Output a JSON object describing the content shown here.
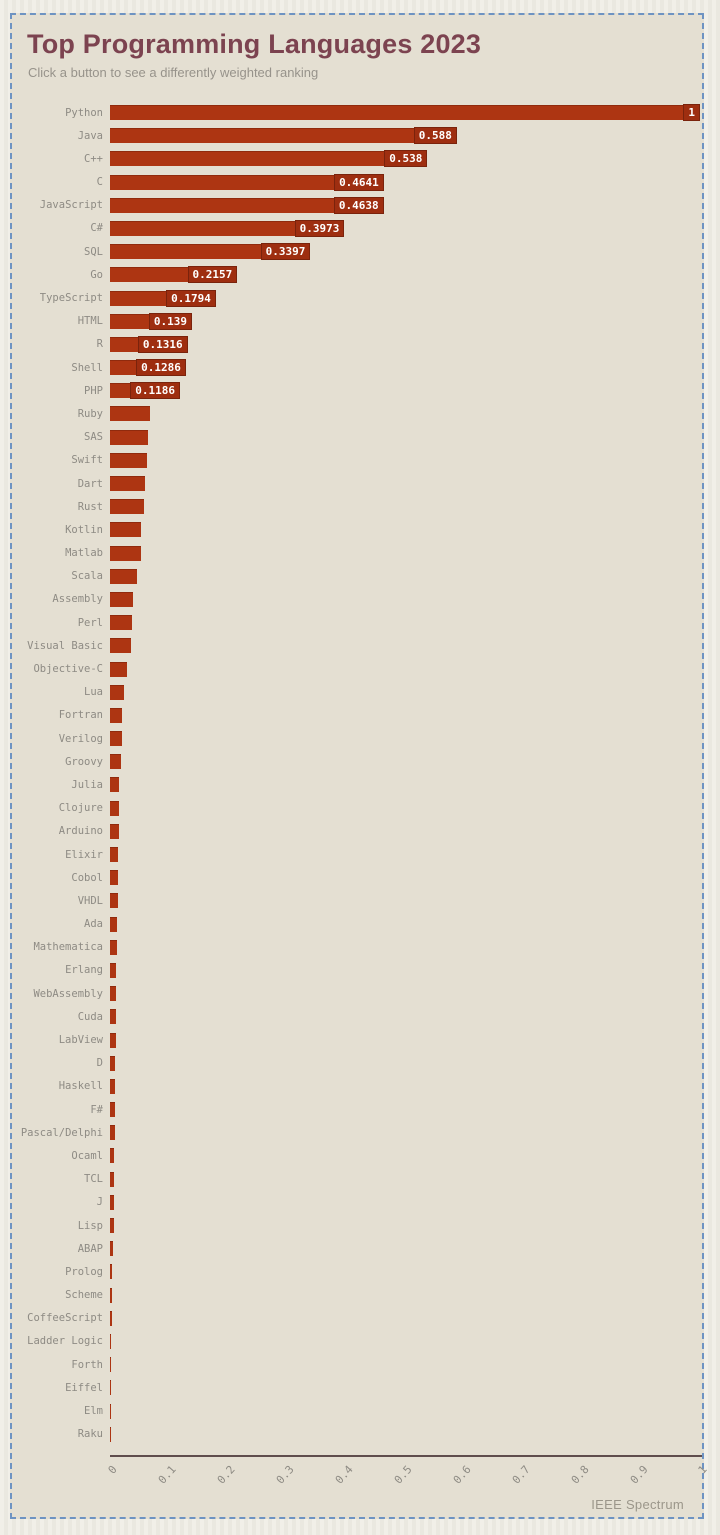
{
  "header": {
    "title": "Top Programming Languages 2023",
    "subtitle": "Click a button to see a differently weighted ranking"
  },
  "branding": {
    "source": "IEEE Spectrum"
  },
  "colors": {
    "bar": "#ad3512",
    "chip_bg": "#9e2e10",
    "chip_border": "#7a230c",
    "panel_bg": "#e4dfd2",
    "panel_border": "#6e93c2",
    "title": "#7c4350",
    "subtitle": "#97938b",
    "row_label": "#8e8b84",
    "axis": "#5f4d4d"
  },
  "chart_data": {
    "type": "bar",
    "orientation": "horizontal",
    "title": "Top Programming Languages 2023",
    "xlabel": "",
    "ylabel": "",
    "xlim": [
      0,
      1
    ],
    "grid": false,
    "legend": false,
    "x_ticks": [
      "0",
      "0.1",
      "0.2",
      "0.3",
      "0.4",
      "0.5",
      "0.6",
      "0.7",
      "0.8",
      "0.9",
      "1"
    ],
    "categories": [
      "Python",
      "Java",
      "C++",
      "C",
      "JavaScript",
      "C#",
      "SQL",
      "Go",
      "TypeScript",
      "HTML",
      "R",
      "Shell",
      "PHP",
      "Ruby",
      "SAS",
      "Swift",
      "Dart",
      "Rust",
      "Kotlin",
      "Matlab",
      "Scala",
      "Assembly",
      "Perl",
      "Visual Basic",
      "Objective-C",
      "Lua",
      "Fortran",
      "Verilog",
      "Groovy",
      "Julia",
      "Clojure",
      "Arduino",
      "Elixir",
      "Cobol",
      "VHDL",
      "Ada",
      "Mathematica",
      "Erlang",
      "WebAssembly",
      "Cuda",
      "LabView",
      "D",
      "Haskell",
      "F#",
      "Pascal/Delphi",
      "Ocaml",
      "TCL",
      "J",
      "Lisp",
      "ABAP",
      "Prolog",
      "Scheme",
      "CoffeeScript",
      "Ladder Logic",
      "Forth",
      "Eiffel",
      "Elm",
      "Raku"
    ],
    "values": [
      1,
      0.588,
      0.538,
      0.4641,
      0.4638,
      0.3973,
      0.3397,
      0.2157,
      0.1794,
      0.139,
      0.1316,
      0.1286,
      0.1186,
      0.067,
      0.064,
      0.062,
      0.06,
      0.058,
      0.053,
      0.052,
      0.046,
      0.039,
      0.038,
      0.035,
      0.028,
      0.024,
      0.021,
      0.021,
      0.018,
      0.016,
      0.015,
      0.015,
      0.014,
      0.013,
      0.013,
      0.012,
      0.012,
      0.011,
      0.011,
      0.01,
      0.01,
      0.009,
      0.009,
      0.008,
      0.008,
      0.007,
      0.007,
      0.006,
      0.006,
      0.005,
      0.004,
      0.003,
      0.003,
      0.002,
      0.002,
      0.001,
      0.001,
      0.0005
    ],
    "value_labels": [
      "1",
      "0.588",
      "0.538",
      "0.4641",
      "0.4638",
      "0.3973",
      "0.3397",
      "0.2157",
      "0.1794",
      "0.139",
      "0.1316",
      "0.1286",
      "0.1186",
      null,
      null,
      null,
      null,
      null,
      null,
      null,
      null,
      null,
      null,
      null,
      null,
      null,
      null,
      null,
      null,
      null,
      null,
      null,
      null,
      null,
      null,
      null,
      null,
      null,
      null,
      null,
      null,
      null,
      null,
      null,
      null,
      null,
      null,
      null,
      null,
      null,
      null,
      null,
      null,
      null,
      null,
      null,
      null,
      null
    ]
  }
}
